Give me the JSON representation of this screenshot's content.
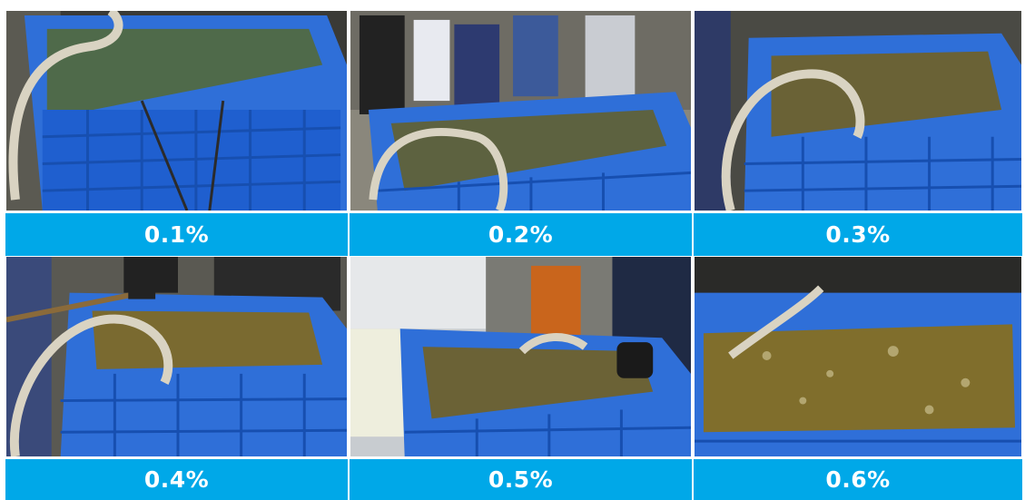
{
  "panels": [
    {
      "label": "0.1%",
      "scene": "tank-photo-clear-water"
    },
    {
      "label": "0.2%",
      "scene": "tank-photo-with-people"
    },
    {
      "label": "0.3%",
      "scene": "tank-photo-greenish-water"
    },
    {
      "label": "0.4%",
      "scene": "tank-photo-yellow-water"
    },
    {
      "label": "0.5%",
      "scene": "tank-photo-with-bottle"
    },
    {
      "label": "0.6%",
      "scene": "tank-photo-dark-yellow-water"
    }
  ],
  "colors": {
    "label_bg": "#00a8e8",
    "label_text": "#ffffff",
    "tank_blue": "#2f6fd8"
  }
}
